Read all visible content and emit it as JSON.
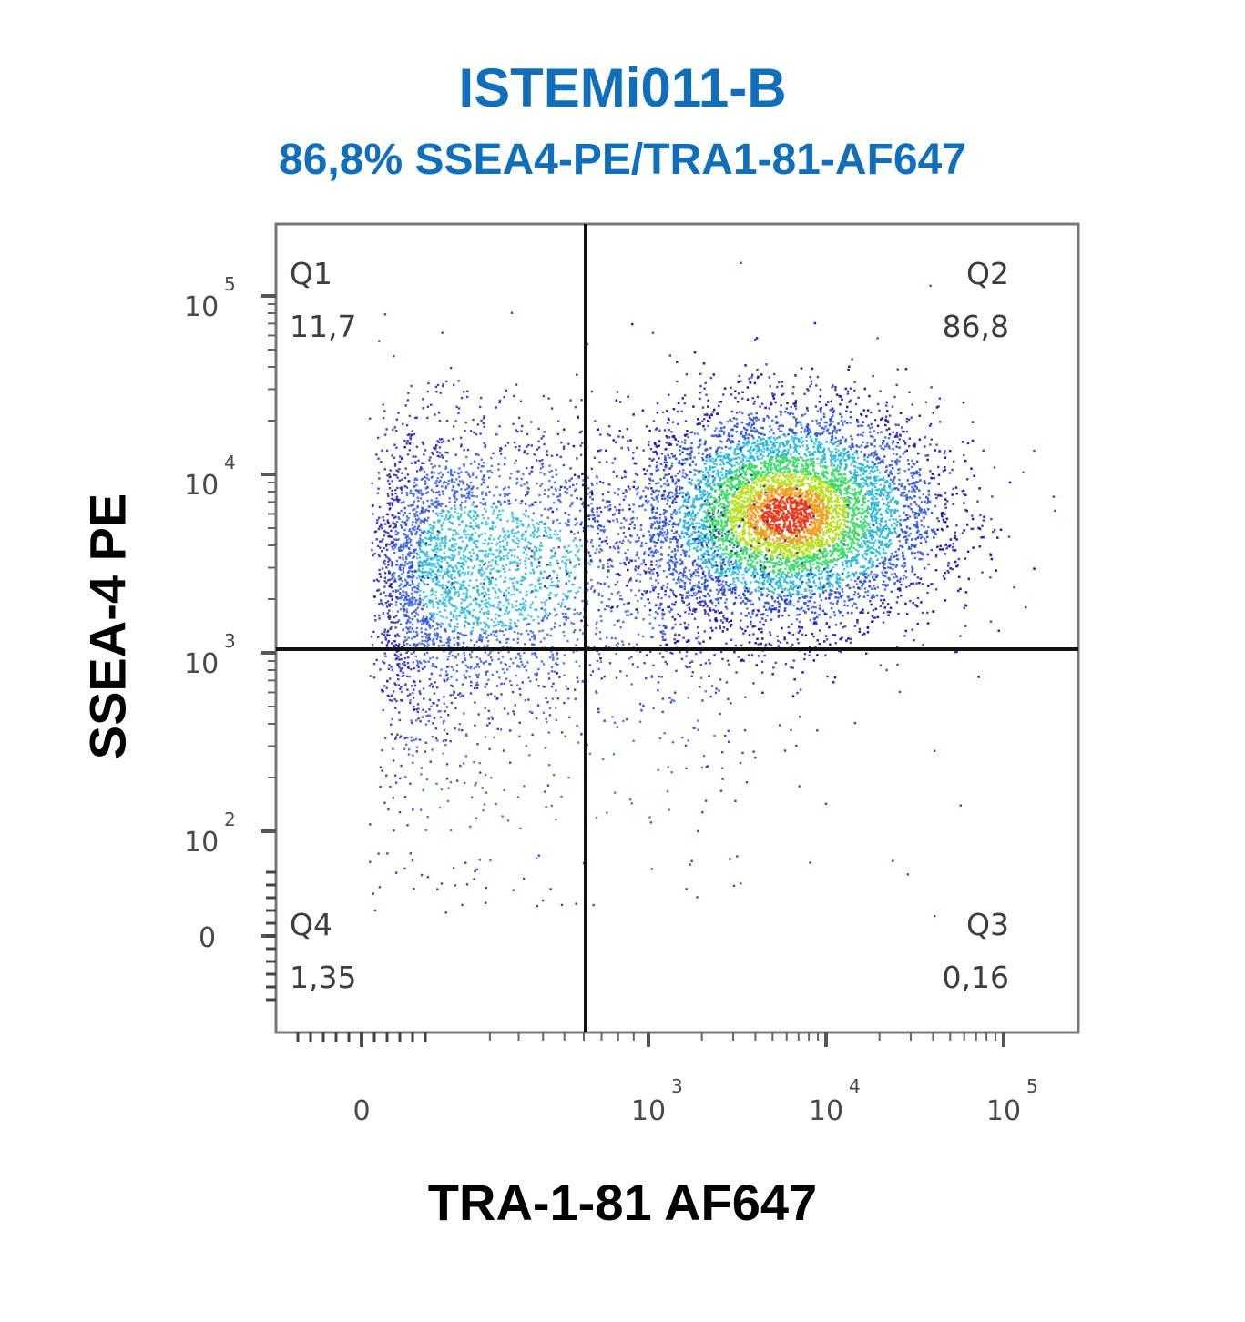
{
  "chart_data": {
    "type": "scatter",
    "title": "ISTEMi011-B",
    "subtitle": "86,8% SSEA4-PE/TRA1-81-AF647",
    "xlabel": "TRA-1-81 AF647",
    "ylabel": "SSEA-4 PE",
    "x_scale": "biexponential",
    "y_scale": "biexponential",
    "x_ticks": [
      {
        "value": 0,
        "base": "0",
        "exp": ""
      },
      {
        "value": 1000,
        "base": "10",
        "exp": "3"
      },
      {
        "value": 10000,
        "base": "10",
        "exp": "4"
      },
      {
        "value": 100000,
        "base": "10",
        "exp": "5"
      }
    ],
    "y_ticks": [
      {
        "value": 0,
        "base": "0",
        "exp": ""
      },
      {
        "value": 100,
        "base": "10",
        "exp": "2"
      },
      {
        "value": 1000,
        "base": "10",
        "exp": "3"
      },
      {
        "value": 10000,
        "base": "10",
        "exp": "4"
      },
      {
        "value": 100000,
        "base": "10",
        "exp": "5"
      }
    ],
    "quadrants": [
      {
        "name": "Q1",
        "value": "11,7"
      },
      {
        "name": "Q2",
        "value": "86,8"
      },
      {
        "name": "Q3",
        "value": "0,16"
      },
      {
        "name": "Q4",
        "value": "1,35"
      }
    ],
    "gate": {
      "x": 500,
      "y": 1000
    },
    "populations": [
      {
        "center_x": 6000,
        "center_y": 6000,
        "spread_x_decades": 0.42,
        "spread_y_decades": 0.3,
        "share": 0.7
      },
      {
        "center_x": 150,
        "center_y": 3000,
        "spread_x_decades": 0.7,
        "spread_y_decades": 0.4,
        "share": 0.27
      },
      {
        "center_x": 200,
        "center_y": 400,
        "spread_x_decades": 0.9,
        "spread_y_decades": 0.6,
        "share": 0.03
      }
    ],
    "density_colors": [
      "#1a1aa6",
      "#2e58d4",
      "#27b8d8",
      "#3fdc6a",
      "#b8e020",
      "#f0a020",
      "#e83a1a"
    ],
    "grid": false
  }
}
